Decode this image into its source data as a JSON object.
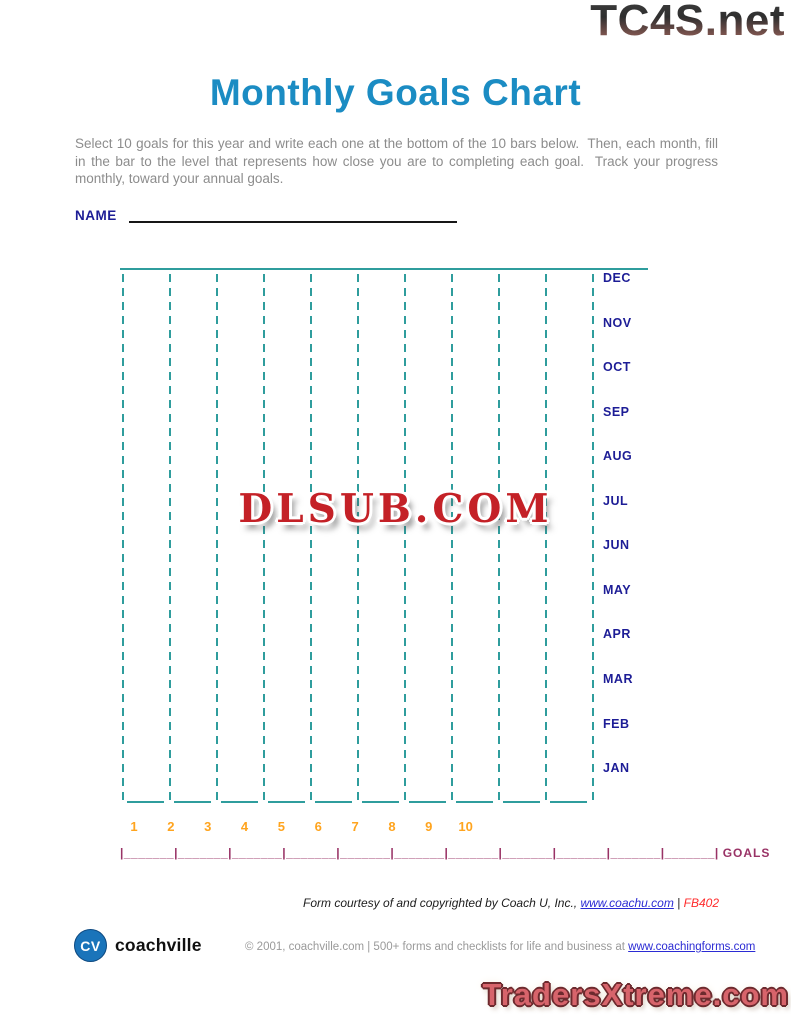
{
  "watermark_top": "TC4S.net",
  "title": "Monthly Goals Chart",
  "instructions": "Select 10 goals for this year and write each one at the bottom of the 10 bars below.  Then, each month, fill in the bar to the level that represents how close you are to completing each goal.  Track your progress monthly, toward your annual goals.",
  "name_label": "NAME",
  "chart": {
    "months": [
      "DEC",
      "NOV",
      "OCT",
      "SEP",
      "AUG",
      "JUL",
      "JUN",
      "MAY",
      "APR",
      "MAR",
      "FEB",
      "JAN"
    ],
    "bar_numbers": [
      "1",
      "2",
      "3",
      "4",
      "5",
      "6",
      "7",
      "8",
      "9",
      "10"
    ],
    "bars_count": 10,
    "goals_line_pipes": "|_______|_______|_______|_______|_______|_______|_______|_______|_______|_______|_______|",
    "goals_label": "GOALS"
  },
  "watermark_center": "DLSUB.COM",
  "footer": {
    "credit_prefix": "Form courtesy of and copyrighted by Coach U, Inc., ",
    "credit_link": "www.coachu.com",
    "credit_separator": " | ",
    "credit_code": "FB402",
    "logo_initials": "CV",
    "logo_text": "coachville",
    "copyright_prefix": "© 2001, coachville.com | 500+ forms and checklists for life and business at ",
    "copyright_link": "www.coachingforms.com"
  },
  "watermark_bottom": "TradersXtreme.com",
  "colors": {
    "teal": "#2f9d9d",
    "navy": "#1d1d96",
    "orange": "#ffa41e",
    "purple": "#993366",
    "title_blue": "#1b8cc3",
    "gray_text": "#8c8c8c",
    "link_blue": "#2b2bd4",
    "watermark_red": "#c42127",
    "cv_blue": "#1a74ba",
    "tradersx_pink": "#d7646b",
    "tradersx_outline": "#6d2a2e"
  }
}
